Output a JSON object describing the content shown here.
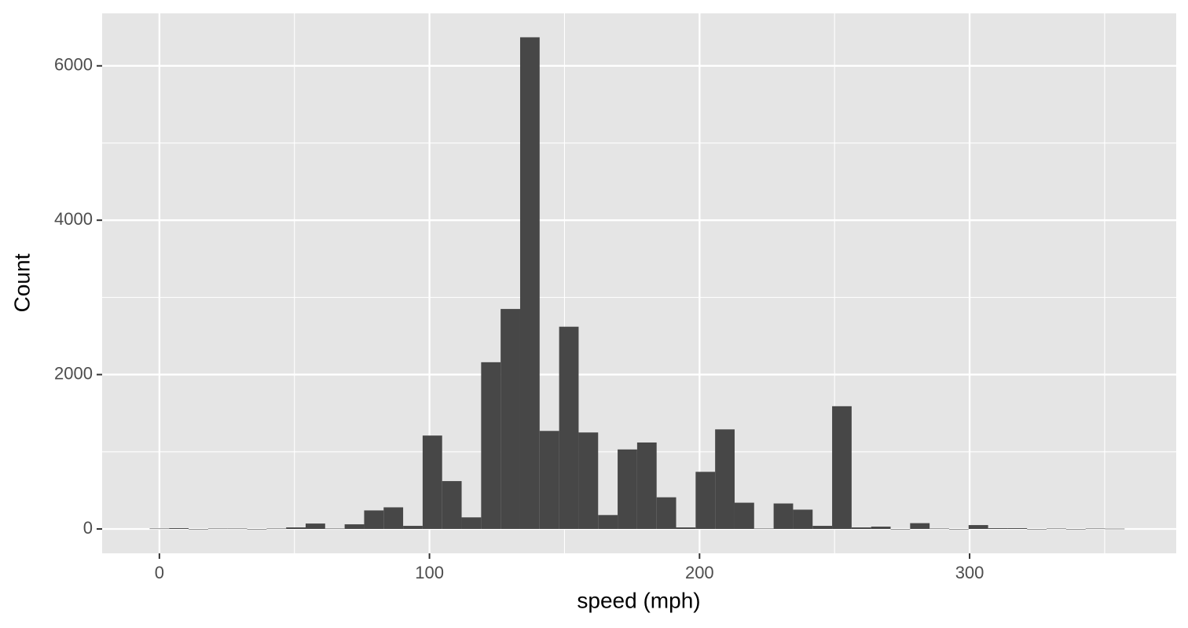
{
  "chart_data": {
    "type": "histogram",
    "xlabel": "speed (mph)",
    "ylabel": "Count",
    "bins": [
      -3.61,
      3.61,
      10.83,
      18.05,
      25.27,
      32.49,
      39.71,
      46.93,
      54.15,
      61.37,
      68.59,
      75.81,
      83.03,
      90.25,
      97.47,
      104.69,
      111.91,
      119.13,
      126.35,
      133.57,
      140.79,
      148.01,
      155.23,
      162.45,
      169.67,
      176.89,
      184.11,
      191.33,
      198.55,
      205.77,
      212.99,
      220.21,
      227.43,
      234.65,
      241.87,
      249.09,
      256.31,
      263.53,
      270.75,
      277.97,
      285.19,
      292.41,
      299.63,
      306.85,
      314.07,
      321.29,
      328.51,
      335.73,
      342.95,
      350.17,
      357.39
    ],
    "values": [
      5,
      10,
      0,
      5,
      5,
      0,
      5,
      20,
      70,
      5,
      60,
      240,
      280,
      40,
      1210,
      620,
      150,
      2160,
      2850,
      6370,
      1270,
      2620,
      1250,
      180,
      1030,
      1120,
      410,
      20,
      740,
      1290,
      340,
      5,
      330,
      250,
      40,
      1590,
      20,
      30,
      0,
      75,
      5,
      0,
      50,
      10,
      10,
      0,
      5,
      0,
      5,
      3
    ],
    "color": "#474747",
    "xlim": [
      -21.2,
      376.5
    ],
    "xticks": [
      0,
      100,
      200,
      300
    ],
    "xminor": [
      50,
      150,
      250,
      350
    ],
    "ylim": [
      -316,
      6680
    ],
    "yticks": [
      0,
      2000,
      4000,
      6000
    ],
    "yminor": [
      1000,
      3000,
      5000
    ],
    "grid": true
  }
}
